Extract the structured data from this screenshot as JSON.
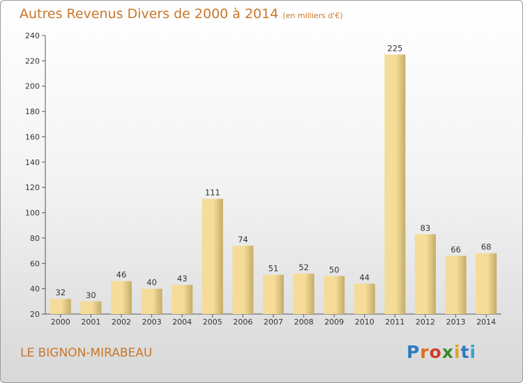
{
  "title": "Autres Revenus Divers de 2000 à 2014",
  "unit": "(en milliers d'€)",
  "commune": "LE BIGNON-MIRABEAU",
  "logo": {
    "text": "Proxiti",
    "letter_colors": [
      "#2d7cc0",
      "#e06a1a",
      "#d43a2a",
      "#3a8a2a",
      "#e0a020",
      "#2d7cc0",
      "#3aa0d0"
    ]
  },
  "colors": {
    "title": "#c9762a",
    "bar_light": "#f5dc98",
    "bar_dark": "#c4ac68"
  },
  "chart_data": {
    "type": "bar",
    "categories": [
      "2000",
      "2001",
      "2002",
      "2003",
      "2004",
      "2005",
      "2006",
      "2007",
      "2008",
      "2009",
      "2010",
      "2011",
      "2012",
      "2013",
      "2014"
    ],
    "values": [
      32,
      30,
      46,
      40,
      43,
      111,
      74,
      51,
      52,
      50,
      44,
      225,
      83,
      66,
      68
    ],
    "ylim": [
      20,
      240
    ],
    "yticks": [
      20,
      40,
      60,
      80,
      100,
      120,
      140,
      160,
      180,
      200,
      220,
      240
    ],
    "grid": false
  }
}
